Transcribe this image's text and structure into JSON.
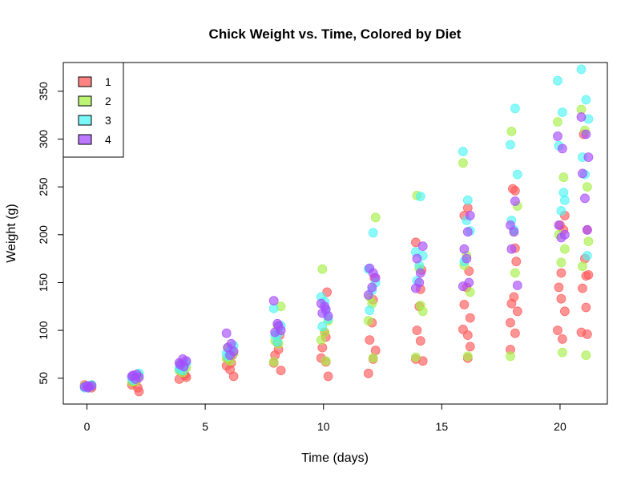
{
  "chart_data": {
    "type": "scatter",
    "title": "Chick Weight vs. Time, Colored by Diet",
    "xlabel": "Time (days)",
    "ylabel": "Weight (g)",
    "xlim": [
      -1,
      22
    ],
    "ylim": [
      23,
      380
    ],
    "x_ticks": [
      0,
      5,
      10,
      15,
      20
    ],
    "y_ticks": [
      50,
      100,
      150,
      200,
      250,
      300,
      350
    ],
    "x_tick_labels": [
      "0",
      "5",
      "10",
      "15",
      "20"
    ],
    "y_tick_labels": [
      "50",
      "100",
      "150",
      "200",
      "250",
      "300",
      "350"
    ],
    "grid": false,
    "legend_position": "top-left",
    "series": [
      {
        "name": "1",
        "color": "#ff5a5a",
        "points": [
          [
            0.0,
            41
          ],
          [
            0.1,
            42
          ],
          [
            0.2,
            40
          ],
          [
            -0.1,
            43
          ],
          [
            0.15,
            41
          ],
          [
            0.05,
            42
          ],
          [
            1.9,
            43
          ],
          [
            2.1,
            48
          ],
          [
            2.2,
            36
          ],
          [
            1.95,
            45
          ],
          [
            2.05,
            51
          ],
          [
            2.15,
            40
          ],
          [
            3.9,
            49
          ],
          [
            4.1,
            55
          ],
          [
            4.2,
            51
          ],
          [
            3.95,
            58
          ],
          [
            4.05,
            60
          ],
          [
            4.15,
            53
          ],
          [
            5.9,
            63
          ],
          [
            6.1,
            66
          ],
          [
            6.2,
            52
          ],
          [
            5.95,
            70
          ],
          [
            6.05,
            59
          ],
          [
            6.15,
            74
          ],
          [
            7.9,
            66
          ],
          [
            8.1,
            80
          ],
          [
            8.2,
            58
          ],
          [
            7.95,
            74
          ],
          [
            8.05,
            87
          ],
          [
            8.15,
            95
          ],
          [
            9.9,
            71
          ],
          [
            10.1,
            93
          ],
          [
            10.2,
            52
          ],
          [
            9.95,
            82
          ],
          [
            10.05,
            98
          ],
          [
            10.15,
            140
          ],
          [
            10.1,
            67
          ],
          [
            11.9,
            55
          ],
          [
            12.1,
            70
          ],
          [
            12.2,
            79
          ],
          [
            11.95,
            90
          ],
          [
            12.05,
            108
          ],
          [
            12.15,
            155
          ],
          [
            12.1,
            132
          ],
          [
            13.9,
            70
          ],
          [
            14.1,
            89
          ],
          [
            14.2,
            68
          ],
          [
            13.95,
            100
          ],
          [
            14.05,
            125
          ],
          [
            14.15,
            163
          ],
          [
            13.9,
            192
          ],
          [
            14.1,
            143
          ],
          [
            15.9,
            101
          ],
          [
            16.1,
            71
          ],
          [
            16.2,
            83
          ],
          [
            15.95,
            127
          ],
          [
            16.05,
            145
          ],
          [
            16.15,
            162
          ],
          [
            16.1,
            228
          ],
          [
            15.95,
            220
          ],
          [
            16.1,
            95
          ],
          [
            16.2,
            113
          ],
          [
            17.9,
            80
          ],
          [
            18.1,
            97
          ],
          [
            18.2,
            120
          ],
          [
            17.95,
            128
          ],
          [
            18.05,
            135
          ],
          [
            18.15,
            172
          ],
          [
            18.0,
            248
          ],
          [
            18.1,
            246
          ],
          [
            17.9,
            108
          ],
          [
            18.1,
            186
          ],
          [
            19.9,
            100
          ],
          [
            20.1,
            91
          ],
          [
            20.2,
            120
          ],
          [
            19.95,
            145
          ],
          [
            20.05,
            160
          ],
          [
            20.15,
            205
          ],
          [
            20.0,
            210
          ],
          [
            20.2,
            220
          ],
          [
            20.05,
            133
          ],
          [
            20.9,
            98
          ],
          [
            21.1,
            124
          ],
          [
            21.2,
            158
          ],
          [
            20.95,
            144
          ],
          [
            21.05,
            175
          ],
          [
            21.15,
            205
          ],
          [
            21.0,
            305
          ],
          [
            21.1,
            157
          ],
          [
            21.15,
            96
          ]
        ]
      },
      {
        "name": "2",
        "color": "#a6f048",
        "points": [
          [
            0.0,
            41
          ],
          [
            0.1,
            40
          ],
          [
            0.2,
            43
          ],
          [
            -0.1,
            42
          ],
          [
            0.05,
            41
          ],
          [
            1.9,
            46
          ],
          [
            2.1,
            49
          ],
          [
            2.2,
            53
          ],
          [
            1.95,
            51
          ],
          [
            2.05,
            47
          ],
          [
            3.9,
            58
          ],
          [
            4.1,
            63
          ],
          [
            4.2,
            61
          ],
          [
            3.95,
            65
          ],
          [
            4.05,
            56
          ],
          [
            5.9,
            71
          ],
          [
            6.1,
            79
          ],
          [
            6.2,
            76
          ],
          [
            5.95,
            82
          ],
          [
            6.05,
            68
          ],
          [
            7.9,
            67
          ],
          [
            8.1,
            86
          ],
          [
            8.2,
            125
          ],
          [
            7.95,
            89
          ],
          [
            8.05,
            104
          ],
          [
            9.9,
            90
          ],
          [
            10.1,
            68
          ],
          [
            10.2,
            110
          ],
          [
            9.95,
            164
          ],
          [
            10.05,
            98
          ],
          [
            11.9,
            110
          ],
          [
            12.1,
            71
          ],
          [
            12.2,
            218
          ],
          [
            11.95,
            135
          ],
          [
            12.05,
            128
          ],
          [
            13.9,
            72
          ],
          [
            14.1,
            126
          ],
          [
            14.2,
            120
          ],
          [
            13.95,
            241
          ],
          [
            14.05,
            165
          ],
          [
            15.9,
            275
          ],
          [
            16.1,
            73
          ],
          [
            16.2,
            140
          ],
          [
            15.95,
            168
          ],
          [
            16.05,
            178
          ],
          [
            17.9,
            73
          ],
          [
            18.1,
            160
          ],
          [
            18.2,
            230
          ],
          [
            17.95,
            308
          ],
          [
            18.05,
            203
          ],
          [
            19.9,
            318
          ],
          [
            20.1,
            77
          ],
          [
            20.2,
            185
          ],
          [
            19.95,
            200
          ],
          [
            20.05,
            171
          ],
          [
            20.15,
            260
          ],
          [
            20.9,
            331
          ],
          [
            21.1,
            74
          ],
          [
            21.2,
            193
          ],
          [
            20.95,
            167
          ],
          [
            21.05,
            309
          ],
          [
            21.15,
            250
          ]
        ]
      },
      {
        "name": "3",
        "color": "#4ef4f4",
        "points": [
          [
            0.0,
            41
          ],
          [
            0.1,
            42
          ],
          [
            0.2,
            43
          ],
          [
            -0.1,
            40
          ],
          [
            0.05,
            42
          ],
          [
            1.9,
            50
          ],
          [
            2.1,
            53
          ],
          [
            2.2,
            55
          ],
          [
            1.95,
            48
          ],
          [
            2.05,
            51
          ],
          [
            3.9,
            60
          ],
          [
            4.1,
            64
          ],
          [
            4.2,
            66
          ],
          [
            3.95,
            62
          ],
          [
            4.05,
            58
          ],
          [
            5.9,
            76
          ],
          [
            6.1,
            80
          ],
          [
            6.2,
            84
          ],
          [
            5.95,
            73
          ],
          [
            6.05,
            78
          ],
          [
            7.9,
            123
          ],
          [
            8.1,
            97
          ],
          [
            8.2,
            105
          ],
          [
            7.95,
            95
          ],
          [
            8.05,
            88
          ],
          [
            9.9,
            135
          ],
          [
            10.1,
            120
          ],
          [
            10.2,
            112
          ],
          [
            9.95,
            104
          ],
          [
            10.05,
            130
          ],
          [
            11.9,
            164
          ],
          [
            12.1,
            202
          ],
          [
            12.2,
            150
          ],
          [
            11.95,
            121
          ],
          [
            12.05,
            142
          ],
          [
            13.9,
            182
          ],
          [
            14.1,
            240
          ],
          [
            14.2,
            178
          ],
          [
            13.95,
            152
          ],
          [
            14.05,
            168
          ],
          [
            15.9,
            287
          ],
          [
            16.1,
            236
          ],
          [
            16.2,
            204
          ],
          [
            15.95,
            172
          ],
          [
            16.05,
            215
          ],
          [
            17.9,
            294
          ],
          [
            18.1,
            332
          ],
          [
            18.2,
            263
          ],
          [
            17.95,
            215
          ],
          [
            18.05,
            205
          ],
          [
            19.9,
            361
          ],
          [
            20.1,
            328
          ],
          [
            20.2,
            236
          ],
          [
            19.95,
            293
          ],
          [
            20.05,
            225
          ],
          [
            20.15,
            244
          ],
          [
            20.9,
            373
          ],
          [
            21.1,
            341
          ],
          [
            21.2,
            321
          ],
          [
            20.95,
            281
          ],
          [
            21.05,
            263
          ],
          [
            21.15,
            178
          ]
        ]
      },
      {
        "name": "4",
        "color": "#a64cff",
        "points": [
          [
            0.0,
            42
          ],
          [
            0.1,
            41
          ],
          [
            0.2,
            42
          ],
          [
            -0.1,
            41
          ],
          [
            0.05,
            40
          ],
          [
            1.9,
            52
          ],
          [
            2.1,
            54
          ],
          [
            2.2,
            51
          ],
          [
            1.95,
            53
          ],
          [
            2.05,
            49
          ],
          [
            3.9,
            66
          ],
          [
            4.1,
            62
          ],
          [
            4.2,
            68
          ],
          [
            3.95,
            64
          ],
          [
            4.05,
            70
          ],
          [
            5.9,
            97
          ],
          [
            6.1,
            86
          ],
          [
            6.2,
            78
          ],
          [
            5.95,
            82
          ],
          [
            6.05,
            74
          ],
          [
            7.9,
            131
          ],
          [
            8.1,
            105
          ],
          [
            8.2,
            100
          ],
          [
            7.95,
            98
          ],
          [
            8.05,
            107
          ],
          [
            9.9,
            128
          ],
          [
            10.1,
            122
          ],
          [
            10.2,
            115
          ],
          [
            9.95,
            118
          ],
          [
            10.05,
            125
          ],
          [
            11.9,
            137
          ],
          [
            12.1,
            160
          ],
          [
            12.2,
            155
          ],
          [
            11.95,
            165
          ],
          [
            12.05,
            145
          ],
          [
            13.9,
            144
          ],
          [
            14.1,
            160
          ],
          [
            14.2,
            188
          ],
          [
            13.95,
            175
          ],
          [
            14.05,
            150
          ],
          [
            15.9,
            146
          ],
          [
            16.1,
            203
          ],
          [
            16.2,
            220
          ],
          [
            15.95,
            185
          ],
          [
            16.05,
            175
          ],
          [
            16.15,
            150
          ],
          [
            17.9,
            210
          ],
          [
            18.1,
            235
          ],
          [
            18.2,
            147
          ],
          [
            17.95,
            185
          ],
          [
            18.05,
            203
          ],
          [
            19.9,
            303
          ],
          [
            20.1,
            290
          ],
          [
            20.2,
            200
          ],
          [
            19.95,
            210
          ],
          [
            20.05,
            197
          ],
          [
            20.9,
            323
          ],
          [
            21.1,
            305
          ],
          [
            21.2,
            281
          ],
          [
            20.95,
            264
          ],
          [
            21.05,
            238
          ],
          [
            21.15,
            205
          ]
        ]
      }
    ]
  }
}
